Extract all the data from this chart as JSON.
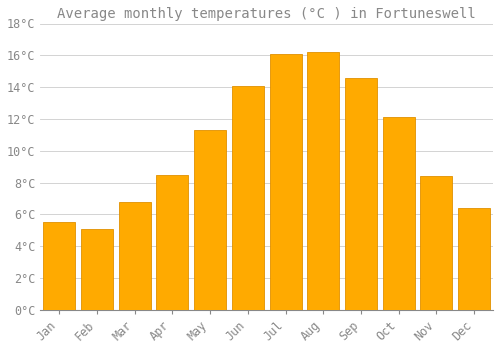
{
  "title": "Average monthly temperatures (°C ) in Fortuneswell",
  "months": [
    "Jan",
    "Feb",
    "Mar",
    "Apr",
    "May",
    "Jun",
    "Jul",
    "Aug",
    "Sep",
    "Oct",
    "Nov",
    "Dec"
  ],
  "values": [
    5.5,
    5.1,
    6.8,
    8.5,
    11.3,
    14.1,
    16.1,
    16.2,
    14.6,
    12.1,
    8.4,
    6.4
  ],
  "bar_color": "#FFAA00",
  "bar_edge_color": "#E09000",
  "background_color": "#FFFFFF",
  "grid_color": "#CCCCCC",
  "text_color": "#888888",
  "title_color": "#888888",
  "ylim": [
    0,
    18
  ],
  "ytick_step": 2,
  "title_fontsize": 10,
  "tick_fontsize": 8.5,
  "bar_width": 0.85
}
